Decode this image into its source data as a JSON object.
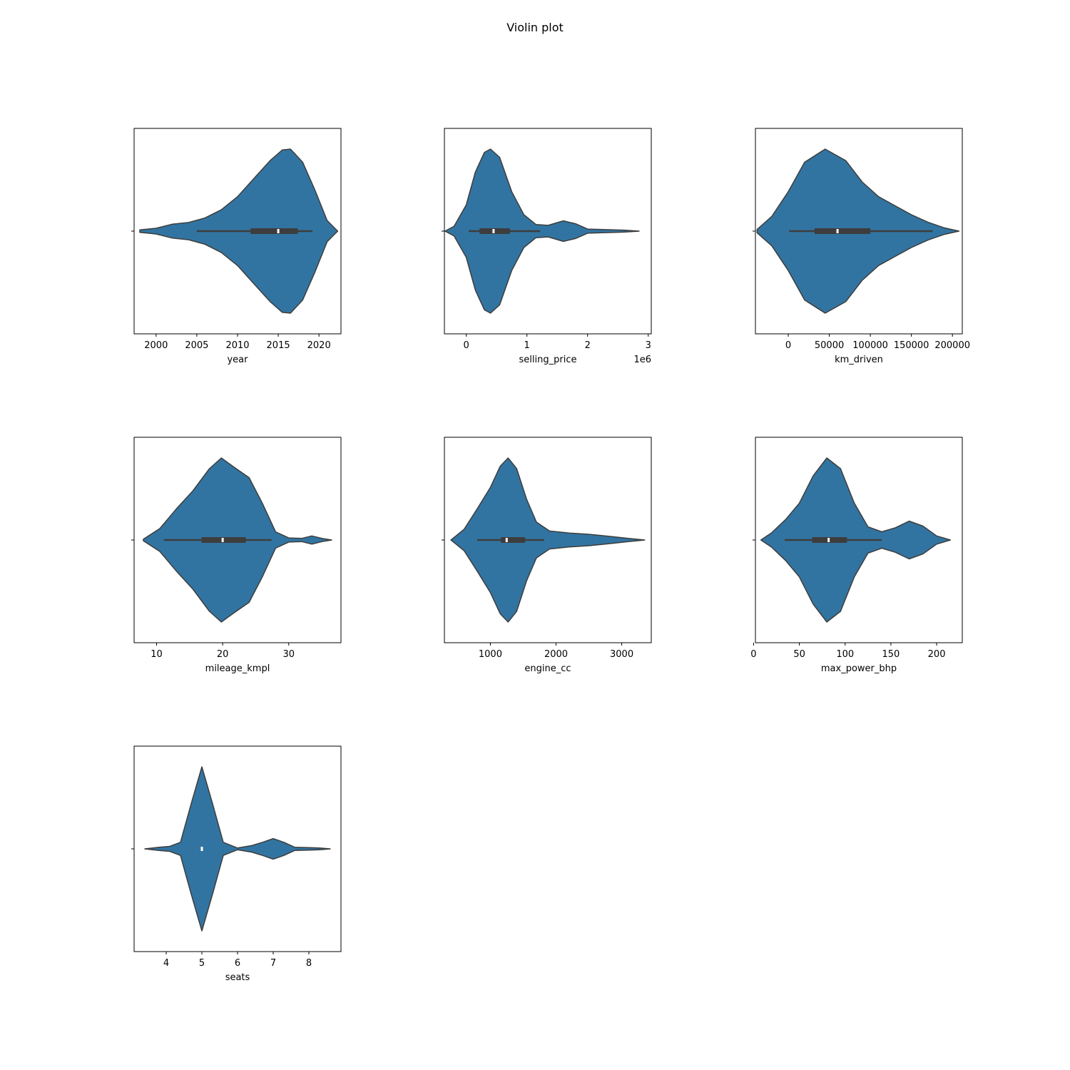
{
  "figure": {
    "suptitle": "Violin plot"
  },
  "style": {
    "violin_fill": "#3274a1",
    "violin_edge": "#3d3d3d",
    "box_color": "#3d3d3d",
    "median_color": "#ffffff",
    "frame_color": "#000000"
  },
  "chart_data": [
    {
      "type": "violin",
      "xlabel": "year",
      "xlim": [
        1997.3,
        2022.7
      ],
      "ticks": [
        2000,
        2005,
        2010,
        2015,
        2020
      ],
      "tick_labels": [
        "2000",
        "2005",
        "2010",
        "2015",
        "2020"
      ],
      "offset_text": "",
      "box": {
        "whisker_low": 2005,
        "q1": 2011.6,
        "median": 2015,
        "q3": 2017.4,
        "whisker_high": 2019.2
      },
      "density": [
        [
          1998.0,
          0.015
        ],
        [
          2000.0,
          0.035
        ],
        [
          2002.0,
          0.085
        ],
        [
          2004.0,
          0.105
        ],
        [
          2006.0,
          0.16
        ],
        [
          2008.0,
          0.26
        ],
        [
          2010.0,
          0.42
        ],
        [
          2012.0,
          0.64
        ],
        [
          2014.0,
          0.86
        ],
        [
          2015.5,
          0.99
        ],
        [
          2016.5,
          1.0
        ],
        [
          2018.0,
          0.84
        ],
        [
          2019.5,
          0.5
        ],
        [
          2021.0,
          0.13
        ],
        [
          2022.3,
          0.0
        ]
      ]
    },
    {
      "type": "violin",
      "xlabel": "selling_price",
      "xlim": [
        -0.36,
        3.05
      ],
      "ticks": [
        0,
        1,
        2,
        3
      ],
      "tick_labels": [
        "0",
        "1",
        "2",
        "3"
      ],
      "offset_text": "1e6",
      "box": {
        "whisker_low": 0.04,
        "q1": 0.22,
        "median": 0.45,
        "q3": 0.72,
        "whisker_high": 1.22
      },
      "density": [
        [
          -0.35,
          0.0
        ],
        [
          -0.2,
          0.06
        ],
        [
          0.0,
          0.32
        ],
        [
          0.15,
          0.72
        ],
        [
          0.3,
          0.96
        ],
        [
          0.4,
          1.0
        ],
        [
          0.55,
          0.9
        ],
        [
          0.75,
          0.48
        ],
        [
          0.95,
          0.2
        ],
        [
          1.15,
          0.08
        ],
        [
          1.35,
          0.07
        ],
        [
          1.6,
          0.125
        ],
        [
          1.8,
          0.09
        ],
        [
          2.0,
          0.025
        ],
        [
          2.3,
          0.018
        ],
        [
          2.6,
          0.012
        ],
        [
          2.85,
          0.0
        ]
      ]
    },
    {
      "type": "violin",
      "xlabel": "km_driven",
      "xlim": [
        -40000,
        212000
      ],
      "ticks": [
        0,
        50000,
        100000,
        150000,
        200000
      ],
      "tick_labels": [
        "0",
        "50000",
        "100000",
        "150000",
        "200000"
      ],
      "offset_text": "",
      "box": {
        "whisker_low": 1000,
        "q1": 32000,
        "median": 60000,
        "q3": 100000,
        "whisker_high": 176000
      },
      "density": [
        [
          -38000,
          0.02
        ],
        [
          -20000,
          0.18
        ],
        [
          0,
          0.48
        ],
        [
          20000,
          0.84
        ],
        [
          45000,
          1.0
        ],
        [
          70000,
          0.86
        ],
        [
          90000,
          0.6
        ],
        [
          110000,
          0.42
        ],
        [
          130000,
          0.31
        ],
        [
          150000,
          0.2
        ],
        [
          170000,
          0.11
        ],
        [
          190000,
          0.04
        ],
        [
          208000,
          0.0
        ]
      ]
    },
    {
      "type": "violin",
      "xlabel": "mileage_kmpl",
      "xlim": [
        6.6,
        37.9
      ],
      "ticks": [
        10,
        20,
        30
      ],
      "tick_labels": [
        "10",
        "20",
        "30"
      ],
      "offset_text": "",
      "box": {
        "whisker_low": 11.1,
        "q1": 16.8,
        "median": 20.0,
        "q3": 23.5,
        "whisker_high": 27.4
      },
      "density": [
        [
          8.0,
          0.01
        ],
        [
          10.5,
          0.14
        ],
        [
          13.0,
          0.38
        ],
        [
          15.5,
          0.6
        ],
        [
          18.0,
          0.87
        ],
        [
          19.8,
          1.0
        ],
        [
          21.5,
          0.9
        ],
        [
          24.0,
          0.76
        ],
        [
          26.0,
          0.45
        ],
        [
          28.0,
          0.1
        ],
        [
          30.0,
          0.025
        ],
        [
          32.0,
          0.02
        ],
        [
          33.5,
          0.05
        ],
        [
          35.0,
          0.02
        ],
        [
          36.5,
          0.0
        ]
      ]
    },
    {
      "type": "violin",
      "xlabel": "engine_cc",
      "xlim": [
        300,
        3450
      ],
      "ticks": [
        1000,
        2000,
        3000
      ],
      "tick_labels": [
        "1000",
        "2000",
        "3000"
      ],
      "offset_text": "",
      "box": {
        "whisker_low": 800,
        "q1": 1160,
        "median": 1248,
        "q3": 1530,
        "whisker_high": 1820
      },
      "density": [
        [
          400,
          0.0
        ],
        [
          600,
          0.13
        ],
        [
          800,
          0.38
        ],
        [
          1000,
          0.64
        ],
        [
          1150,
          0.9
        ],
        [
          1270,
          1.0
        ],
        [
          1400,
          0.87
        ],
        [
          1550,
          0.5
        ],
        [
          1700,
          0.22
        ],
        [
          1900,
          0.11
        ],
        [
          2200,
          0.085
        ],
        [
          2500,
          0.07
        ],
        [
          2800,
          0.045
        ],
        [
          3100,
          0.02
        ],
        [
          3350,
          0.0
        ]
      ]
    },
    {
      "type": "violin",
      "xlabel": "max_power_bhp",
      "xlim": [
        2,
        228
      ],
      "ticks": [
        0,
        50,
        100,
        150,
        200
      ],
      "tick_labels": [
        "0",
        "50",
        "100",
        "150",
        "200"
      ],
      "offset_text": "",
      "box": {
        "whisker_low": 34,
        "q1": 64,
        "median": 82,
        "q3": 102,
        "whisker_high": 140
      },
      "density": [
        [
          8,
          0.0
        ],
        [
          20,
          0.09
        ],
        [
          35,
          0.25
        ],
        [
          50,
          0.45
        ],
        [
          65,
          0.78
        ],
        [
          80,
          1.0
        ],
        [
          95,
          0.87
        ],
        [
          110,
          0.45
        ],
        [
          125,
          0.16
        ],
        [
          140,
          0.1
        ],
        [
          155,
          0.15
        ],
        [
          170,
          0.23
        ],
        [
          185,
          0.17
        ],
        [
          200,
          0.05
        ],
        [
          215,
          0.0
        ]
      ]
    },
    {
      "type": "violin",
      "xlabel": "seats",
      "xlim": [
        3.1,
        8.9
      ],
      "ticks": [
        4,
        5,
        6,
        7,
        8
      ],
      "tick_labels": [
        "4",
        "5",
        "6",
        "7",
        "8"
      ],
      "offset_text": "",
      "box": {
        "whisker_low": 5,
        "q1": 5,
        "median": 5,
        "q3": 5,
        "whisker_high": 5
      },
      "density": [
        [
          3.4,
          0.0
        ],
        [
          3.8,
          0.02
        ],
        [
          4.1,
          0.03
        ],
        [
          4.4,
          0.08
        ],
        [
          4.7,
          0.55
        ],
        [
          5.0,
          1.0
        ],
        [
          5.3,
          0.55
        ],
        [
          5.6,
          0.08
        ],
        [
          6.0,
          0.01
        ],
        [
          6.4,
          0.04
        ],
        [
          6.7,
          0.08
        ],
        [
          7.0,
          0.125
        ],
        [
          7.3,
          0.08
        ],
        [
          7.6,
          0.02
        ],
        [
          8.0,
          0.015
        ],
        [
          8.3,
          0.01
        ],
        [
          8.6,
          0.0
        ]
      ]
    }
  ]
}
